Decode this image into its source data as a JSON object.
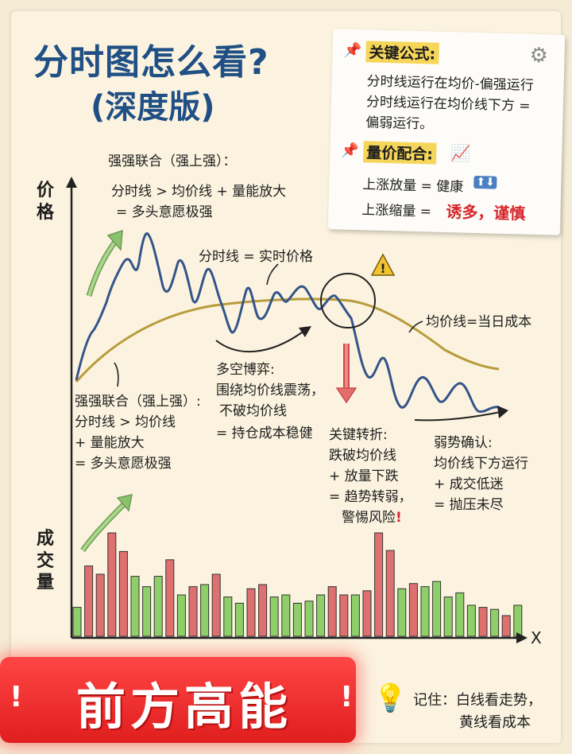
{
  "header": {
    "title": "分时图怎么看?",
    "subtitle": "(深度版)"
  },
  "formula_card": {
    "section1_title": "关键公式:",
    "section1_lines": [
      "分时线运行在均价-偏强运行",
      "分时线运行在均价线下方 =",
      "偏弱运行。"
    ],
    "section2_title": "量价配合:",
    "rule1": "上涨放量 = 健康",
    "rule2_prefix": "上涨缩量 =",
    "rule2_warning": "诱多，谨慎"
  },
  "axes": {
    "price_label": "价格",
    "volume_label": "成交量",
    "x_label": "X"
  },
  "annotations": {
    "top_left": [
      "强强联合（强上强）：",
      "分时线 > 均价线 + 量能放大",
      "= 多头意愿极强"
    ],
    "realtime_line": "分时线 = 实时价格",
    "avg_line": "均价线=当日成本",
    "left_mid": [
      "强强联合（强上强）:",
      "分时线 > 均价线",
      "+ 量能放大",
      "= 多头意愿极强"
    ],
    "contest": [
      "多空博弈:",
      "围绕均价线震荡，",
      "不破均价线",
      "= 持仓成本稳健"
    ],
    "turning": [
      "关键转折:",
      "跌破均价线",
      "+ 放量下跌",
      "= 趋势转弱，",
      "警惕风险"
    ],
    "turning_mark": "!",
    "weak": [
      "弱势确认:",
      "均价线下方运行",
      "+ 成交低迷",
      "= 抛压未尽"
    ]
  },
  "banner": {
    "text": "前方高能",
    "left_mark": "!",
    "right_mark": "!"
  },
  "tip": {
    "line1": "记住：白线看走势，",
    "line2": "黄线看成本"
  },
  "chart_data": {
    "type": "bar",
    "volume_values": [
      28,
      68,
      60,
      100,
      82,
      58,
      48,
      58,
      74,
      40,
      48,
      50,
      60,
      38,
      32,
      46,
      50,
      38,
      40,
      32,
      34,
      40,
      48,
      40,
      40,
      44,
      100,
      83,
      46,
      51,
      48,
      53,
      38,
      42,
      30,
      28,
      26,
      20,
      30
    ],
    "volume_colors": [
      "g",
      "r",
      "r",
      "r",
      "r",
      "g",
      "g",
      "g",
      "r",
      "g",
      "r",
      "g",
      "r",
      "g",
      "g",
      "r",
      "r",
      "g",
      "g",
      "g",
      "g",
      "g",
      "r",
      "r",
      "g",
      "r",
      "r",
      "r",
      "g",
      "r",
      "g",
      "g",
      "g",
      "g",
      "g",
      "r",
      "g",
      "r",
      "g"
    ],
    "colors": {
      "red": "#de7070",
      "green": "#8fcf6a",
      "price_line": "#34548a",
      "avg_line": "#b89b3a",
      "arrow_green": "#8ac36e",
      "arrow_red": "#e36c6c"
    }
  }
}
